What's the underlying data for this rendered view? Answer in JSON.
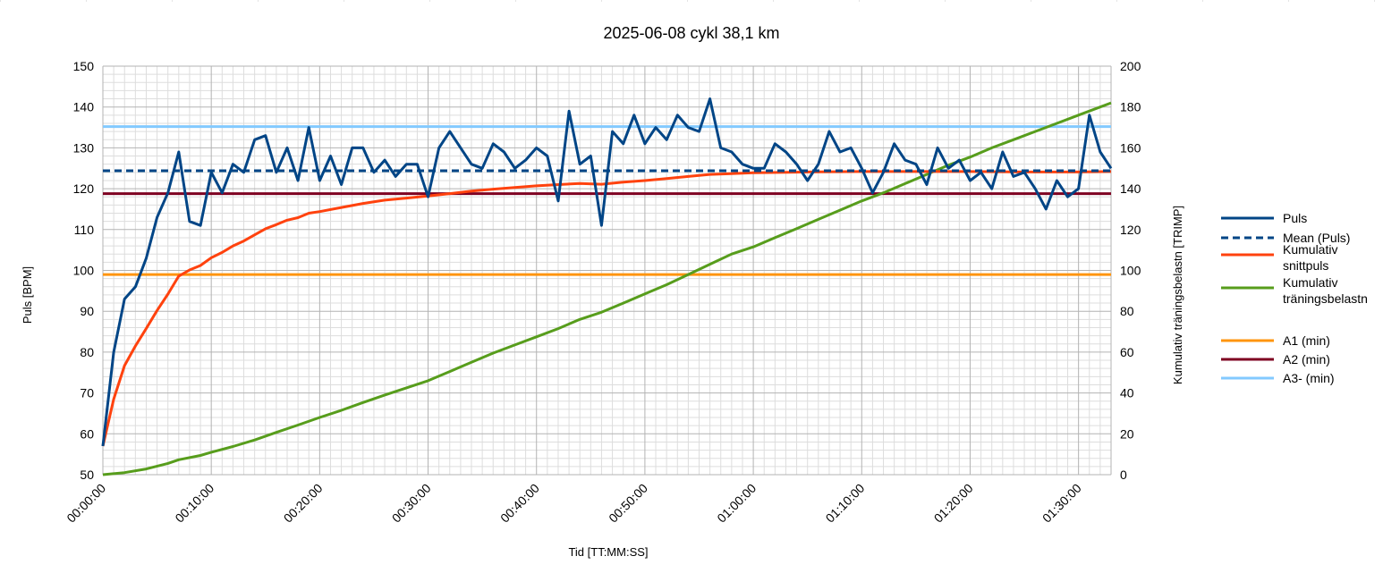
{
  "chart_data": {
    "type": "line",
    "title": "2025-06-08 cykl 38,1 km",
    "xlabel": "Tid [TT:MM:SS]",
    "ylabel": "Puls [BPM]",
    "y2label": "Kumulativ träningsbelastn [TRIMP]",
    "x_unit": "minutes",
    "xlim": [
      0,
      93
    ],
    "ylim": [
      50,
      150
    ],
    "y2lim": [
      0,
      200
    ],
    "grid": true,
    "legend_position": "right",
    "x_ticks": [
      {
        "v": 0,
        "label": "00:00:00"
      },
      {
        "v": 10,
        "label": "00:10:00"
      },
      {
        "v": 20,
        "label": "00:20:00"
      },
      {
        "v": 30,
        "label": "00:30:00"
      },
      {
        "v": 40,
        "label": "00:40:00"
      },
      {
        "v": 50,
        "label": "00:50:00"
      },
      {
        "v": 60,
        "label": "01:00:00"
      },
      {
        "v": 70,
        "label": "01:10:00"
      },
      {
        "v": 80,
        "label": "01:20:00"
      },
      {
        "v": 90,
        "label": "01:30:00"
      }
    ],
    "y_ticks": [
      "50",
      "60",
      "70",
      "80",
      "90",
      "100",
      "110",
      "120",
      "130",
      "140",
      "150"
    ],
    "y2_ticks": [
      "0",
      "20",
      "40",
      "60",
      "80",
      "100",
      "120",
      "140",
      "160",
      "180",
      "200"
    ],
    "series": [
      {
        "name": "Puls",
        "axis": "left",
        "style": "solid",
        "color": "#004586",
        "x": [
          0,
          1,
          2,
          3,
          4,
          5,
          6,
          7,
          8,
          9,
          10,
          11,
          12,
          13,
          14,
          15,
          16,
          17,
          18,
          19,
          20,
          21,
          22,
          23,
          24,
          25,
          26,
          27,
          28,
          29,
          30,
          31,
          32,
          33,
          34,
          35,
          36,
          37,
          38,
          39,
          40,
          41,
          42,
          43,
          44,
          45,
          46,
          47,
          48,
          49,
          50,
          51,
          52,
          53,
          54,
          55,
          56,
          57,
          58,
          59,
          60,
          61,
          62,
          63,
          64,
          65,
          66,
          67,
          68,
          69,
          70,
          71,
          72,
          73,
          74,
          75,
          76,
          77,
          78,
          79,
          80,
          81,
          82,
          83,
          84,
          85,
          86,
          87,
          88,
          89,
          90,
          91,
          92,
          93
        ],
        "values": [
          57,
          80,
          93,
          96,
          103,
          113,
          119,
          129,
          112,
          111,
          124,
          119,
          126,
          124,
          132,
          133,
          124,
          130,
          122,
          135,
          122,
          128,
          121,
          130,
          130,
          124,
          127,
          123,
          126,
          126,
          118,
          130,
          134,
          130,
          126,
          125,
          131,
          129,
          125,
          127,
          130,
          128,
          117,
          139,
          126,
          128,
          111,
          134,
          131,
          138,
          131,
          135,
          132,
          138,
          135,
          134,
          142,
          130,
          129,
          126,
          125,
          125,
          131,
          129,
          126,
          122,
          126,
          134,
          129,
          130,
          125,
          119,
          124,
          131,
          127,
          126,
          121,
          130,
          125,
          127,
          122,
          124,
          120,
          129,
          123,
          124,
          120,
          115,
          122,
          118,
          120,
          138,
          129,
          125
        ]
      },
      {
        "name": "Mean (Puls)",
        "axis": "left",
        "style": "dashed",
        "color": "#004586",
        "x": [
          0,
          93
        ],
        "values": [
          124.4,
          124.4
        ]
      },
      {
        "name": "Kumulativ snittpuls",
        "axis": "left",
        "style": "solid",
        "color": "#ff420e",
        "x": [
          0,
          1,
          2,
          3,
          4,
          5,
          6,
          7,
          8,
          9,
          10,
          11,
          12,
          13,
          14,
          15,
          16,
          17,
          18,
          19,
          20,
          22,
          24,
          26,
          28,
          30,
          32,
          34,
          36,
          38,
          40,
          42,
          44,
          46,
          48,
          50,
          52,
          54,
          56,
          58,
          60,
          65,
          70,
          75,
          80,
          85,
          90,
          93
        ],
        "values": [
          57,
          68.5,
          76.7,
          81.5,
          85.8,
          90.2,
          94.2,
          98.6,
          100.1,
          101.2,
          103.1,
          104.4,
          106,
          107.2,
          108.7,
          110.2,
          111.2,
          112.3,
          112.9,
          114,
          114.4,
          115.4,
          116.4,
          117.2,
          117.7,
          118.2,
          118.8,
          119.4,
          119.9,
          120.3,
          120.7,
          121,
          121.3,
          121.1,
          121.6,
          122,
          122.5,
          123,
          123.5,
          123.7,
          123.9,
          124.1,
          124.2,
          124.2,
          124.2,
          124.1,
          124.1,
          124.2
        ]
      },
      {
        "name": "Kumulativ träningsbelastn",
        "axis": "right",
        "style": "solid",
        "color": "#579d1c",
        "x": [
          0,
          2,
          4,
          6,
          7,
          9,
          10,
          12,
          14,
          16,
          18,
          20,
          22,
          24,
          26,
          28,
          30,
          32,
          34,
          36,
          38,
          40,
          42,
          44,
          46,
          48,
          50,
          52,
          54,
          56,
          58,
          60,
          62,
          64,
          66,
          68,
          70,
          72,
          74,
          76,
          78,
          80,
          82,
          84,
          86,
          88,
          90,
          92,
          93
        ],
        "values": [
          0,
          1,
          2.8,
          5.5,
          7.3,
          9.4,
          11,
          13.8,
          17,
          20.7,
          24.3,
          28,
          31.5,
          35.3,
          39,
          42.5,
          46,
          50.5,
          55,
          59.5,
          63.5,
          67.5,
          71.5,
          76,
          79.5,
          84,
          88.5,
          93,
          98,
          103,
          108,
          111.5,
          116,
          120.5,
          125,
          129.5,
          134,
          138,
          142.5,
          147,
          151.5,
          155.5,
          160,
          164,
          168,
          172,
          176,
          180,
          182
        ]
      },
      {
        "name": "A1 (min)",
        "axis": "left",
        "style": "solid",
        "color": "#ff950e",
        "x": [
          0,
          93
        ],
        "values": [
          99,
          99
        ]
      },
      {
        "name": "A2 (min)",
        "axis": "left",
        "style": "solid",
        "color": "#7e0021",
        "x": [
          0,
          93
        ],
        "values": [
          118.8,
          118.8
        ]
      },
      {
        "name": "A3- (min)",
        "axis": "left",
        "style": "solid",
        "color": "#83caff",
        "x": [
          0,
          93
        ],
        "values": [
          135.2,
          135.2
        ]
      }
    ],
    "legend": [
      {
        "lines": [
          "Puls"
        ],
        "color": "#004586",
        "style": "solid"
      },
      {
        "lines": [
          "Mean (Puls)"
        ],
        "color": "#004586",
        "style": "dashed"
      },
      {
        "lines": [
          "Kumulativ",
          "snittpuls"
        ],
        "color": "#ff420e",
        "style": "solid"
      },
      {
        "lines": [
          "Kumulativ",
          "träningsbelastn"
        ],
        "color": "#579d1c",
        "style": "solid"
      },
      {
        "lines": [
          "A1 (min)"
        ],
        "color": "#ff950e",
        "style": "solid"
      },
      {
        "lines": [
          "A2 (min)"
        ],
        "color": "#7e0021",
        "style": "solid"
      },
      {
        "lines": [
          "A3- (min)"
        ],
        "color": "#83caff",
        "style": "solid"
      }
    ]
  }
}
